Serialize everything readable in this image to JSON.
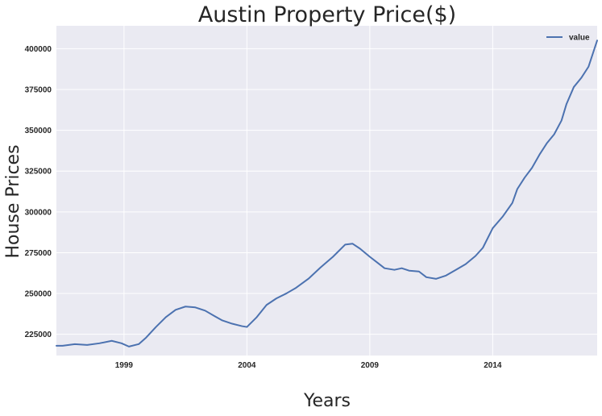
{
  "chart_data": {
    "type": "line",
    "title": "Austin Property Price($)",
    "xlabel": "Years",
    "ylabel": "House Prices",
    "xlim": [
      1996.25,
      2018.25
    ],
    "ylim": [
      212000,
      414000
    ],
    "x_ticks": [
      1999,
      2004,
      2009,
      2014
    ],
    "y_ticks": [
      225000,
      250000,
      275000,
      300000,
      325000,
      350000,
      375000,
      400000
    ],
    "grid": true,
    "legend": "top-right",
    "series": [
      {
        "name": "value",
        "color": "#4c72b0",
        "x": [
          1996.25,
          1996.5,
          1997.0,
          1997.5,
          1998.0,
          1998.5,
          1998.9,
          1999.2,
          1999.6,
          1999.9,
          2000.3,
          2000.7,
          2001.1,
          2001.5,
          2001.9,
          2002.3,
          2002.7,
          2003.0,
          2003.4,
          2003.8,
          2004.0,
          2004.4,
          2004.8,
          2005.2,
          2005.6,
          2006.0,
          2006.5,
          2007.0,
          2007.5,
          2008.0,
          2008.3,
          2008.6,
          2009.0,
          2009.3,
          2009.6,
          2010.0,
          2010.3,
          2010.6,
          2011.0,
          2011.3,
          2011.7,
          2012.1,
          2012.5,
          2012.9,
          2013.3,
          2013.6,
          2014.0,
          2014.4,
          2014.8,
          2015.0,
          2015.3,
          2015.6,
          2015.9,
          2016.2,
          2016.5,
          2016.8,
          2017.0,
          2017.3,
          2017.6,
          2017.9,
          2018.25
        ],
        "values": [
          218000,
          218000,
          219000,
          218500,
          219500,
          221000,
          219500,
          217500,
          219000,
          223000,
          229500,
          235500,
          240000,
          242000,
          241500,
          239500,
          236000,
          233500,
          231500,
          230000,
          229500,
          235500,
          243000,
          247000,
          250000,
          253500,
          259000,
          266000,
          272500,
          280000,
          280500,
          277500,
          272500,
          269000,
          265500,
          264500,
          265500,
          264000,
          263500,
          260000,
          259000,
          261000,
          264500,
          268000,
          273000,
          278000,
          290000,
          297000,
          305500,
          314000,
          321000,
          327000,
          335000,
          342000,
          347500,
          356000,
          366000,
          376500,
          382000,
          389000,
          405000
        ]
      }
    ]
  }
}
